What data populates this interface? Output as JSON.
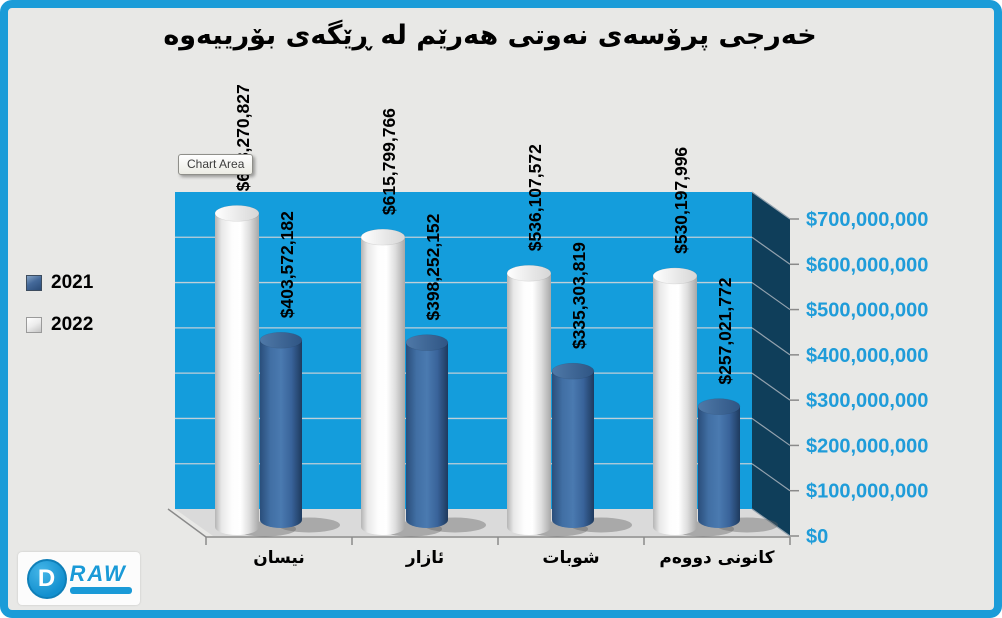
{
  "title": "خەرجی پرۆسەی نەوتی هەرێم لە ڕێگەی بۆرییەوە",
  "tooltip": {
    "label": "Chart Area"
  },
  "legend": {
    "items": [
      {
        "label": "2021",
        "color": "#3A6597"
      },
      {
        "label": "2022",
        "color": "#F2F2F2"
      }
    ]
  },
  "logo": {
    "circle_letter": "D",
    "text": "RAW"
  },
  "frame": {
    "border_color": "#1B9CD8",
    "background": "#E8E8E6"
  },
  "chart_data": {
    "type": "bar",
    "subtype": "3d-cylinder",
    "title": "خەرجی پرۆسەی نەوتی هەرێم لە ڕێگەی بۆرییەوە",
    "categories": [
      "نیسان",
      "ئازار",
      "شوبات",
      "کانونی دووەم"
    ],
    "series": [
      {
        "name": "2021",
        "color": "#3A6597",
        "values": [
          403572182,
          398252152,
          335303819,
          257021772
        ],
        "labels": [
          "$403,572,182",
          "$398,252,152",
          "$335,303,819",
          "$257,021,772"
        ]
      },
      {
        "name": "2022",
        "color": "#F2F2F2",
        "values": [
          668270827,
          615799766,
          536107572,
          530197996
        ],
        "labels": [
          "$668,270,827",
          "$615,799,766",
          "$536,107,572",
          "$530,197,996"
        ]
      }
    ],
    "y_ticks": [
      "$0",
      "$100,000,000",
      "$200,000,000",
      "$300,000,000",
      "$400,000,000",
      "$500,000,000",
      "$600,000,000",
      "$700,000,000"
    ],
    "ylim": [
      0,
      700000000
    ],
    "value_axis_side": "right",
    "legend_position": "left",
    "grid": true,
    "colors": {
      "plot_bg": "#149DDC",
      "side_wall": "#0F3E5A",
      "floor": "#DADADA",
      "tick_label": "#1F9CD9",
      "gridline_front": "#BFCFD8",
      "gridline_side": "#93A2AE",
      "axis_line": "#8A8A8A"
    }
  }
}
